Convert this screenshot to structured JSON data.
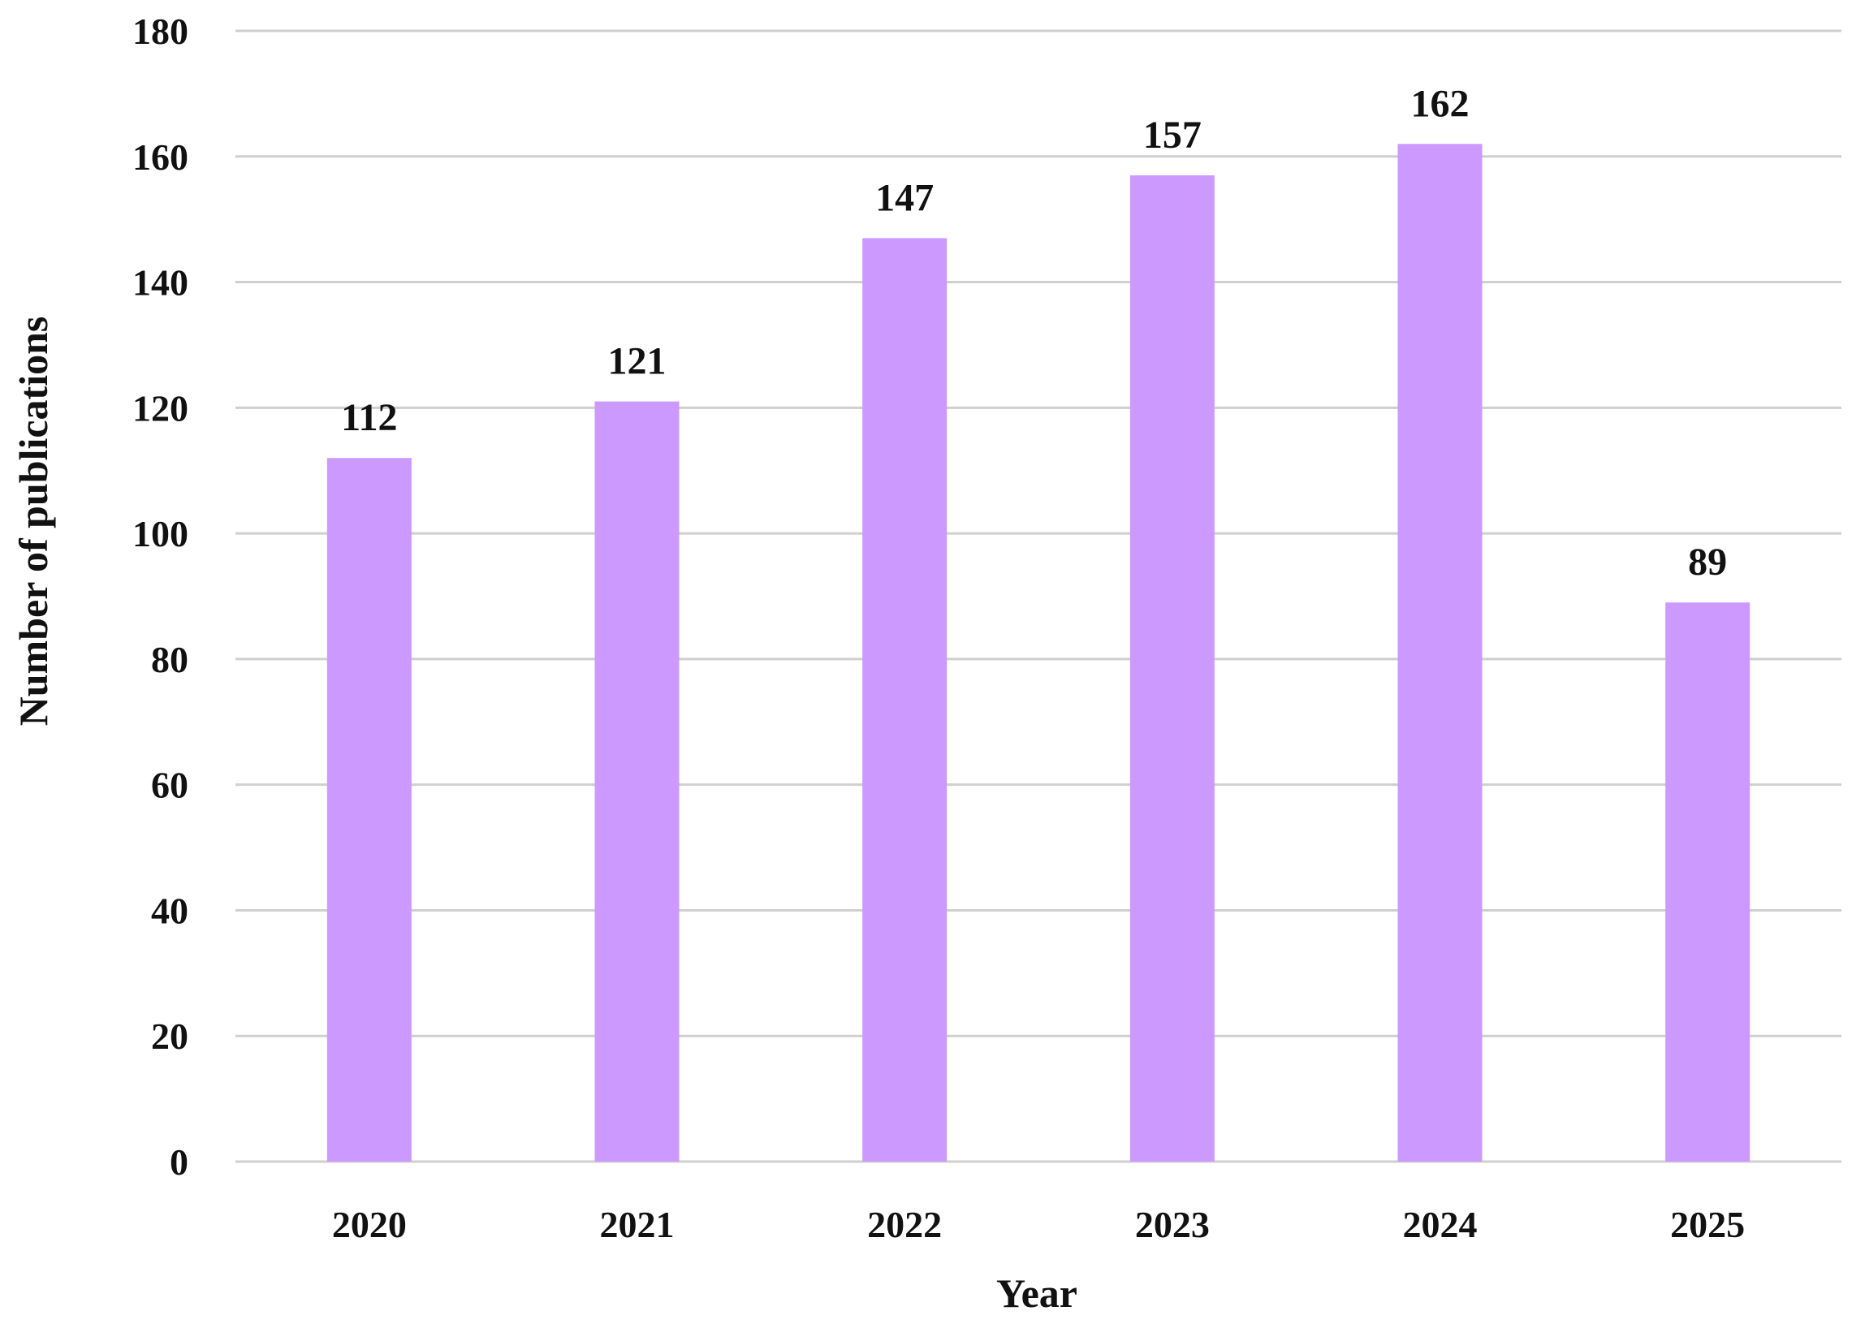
{
  "chart_data": {
    "type": "bar",
    "title": "",
    "xlabel": "Year",
    "ylabel": "Number of publications",
    "categories": [
      "2020",
      "2021",
      "2022",
      "2023",
      "2024",
      "2025"
    ],
    "values": [
      112,
      121,
      147,
      157,
      162,
      89
    ],
    "data_labels": [
      "112",
      "121",
      "147",
      "157",
      "162",
      "89"
    ],
    "ylim": [
      0,
      180
    ],
    "yticks": [
      0,
      20,
      40,
      60,
      80,
      100,
      120,
      140,
      160,
      180
    ],
    "grid": true,
    "legend": "none",
    "bar_color": "#cc99ff",
    "gridline_color": "#cfcfcf",
    "text_color": "#111111"
  }
}
